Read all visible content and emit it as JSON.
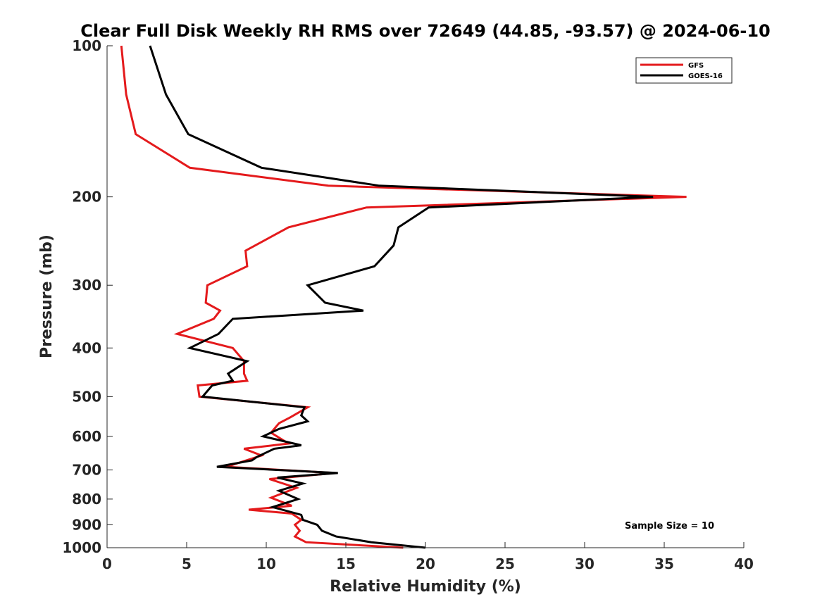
{
  "chart_data": {
    "type": "line",
    "title": "Clear Full Disk Weekly RH RMS over 72649 (44.85, -93.57) @ 2024-06-10",
    "xlabel": "Relative Humidity (%)",
    "ylabel": "Pressure (mb)",
    "xlim": [
      0,
      40
    ],
    "ylim": [
      100,
      1000
    ],
    "yscale": "log",
    "y_reversed": true,
    "x_ticks": [
      "0",
      "5",
      "10",
      "15",
      "20",
      "25",
      "30",
      "35",
      "40"
    ],
    "y_ticks": [
      "100",
      "200",
      "300",
      "400",
      "500",
      "600",
      "700",
      "800",
      "900",
      "1000"
    ],
    "legend_position": "top-right",
    "annotation": "Sample Size = 10",
    "series": [
      {
        "name": "GFS",
        "color": "#e41a1c",
        "points": [
          [
            0.9,
            100
          ],
          [
            1.2,
            125
          ],
          [
            1.8,
            150
          ],
          [
            5.2,
            175
          ],
          [
            13.9,
            190
          ],
          [
            36.4,
            200
          ],
          [
            16.3,
            210
          ],
          [
            11.4,
            230
          ],
          [
            8.7,
            256
          ],
          [
            8.8,
            275
          ],
          [
            6.3,
            300
          ],
          [
            6.2,
            325
          ],
          [
            7.1,
            337
          ],
          [
            6.7,
            350
          ],
          [
            4.4,
            375
          ],
          [
            7.9,
            400
          ],
          [
            8.6,
            425
          ],
          [
            8.6,
            450
          ],
          [
            8.8,
            465
          ],
          [
            5.7,
            475
          ],
          [
            5.8,
            500
          ],
          [
            12.6,
            525
          ],
          [
            11.5,
            550
          ],
          [
            10.8,
            565
          ],
          [
            10.3,
            590
          ],
          [
            11.4,
            620
          ],
          [
            8.6,
            635
          ],
          [
            9.7,
            655
          ],
          [
            7.5,
            690
          ],
          [
            14.3,
            710
          ],
          [
            10.2,
            730
          ],
          [
            11.9,
            760
          ],
          [
            10.3,
            795
          ],
          [
            11.6,
            825
          ],
          [
            8.9,
            840
          ],
          [
            11.6,
            855
          ],
          [
            12.2,
            880
          ],
          [
            11.8,
            900
          ],
          [
            12.1,
            925
          ],
          [
            11.8,
            950
          ],
          [
            12.5,
            975
          ],
          [
            18.6,
            1000
          ]
        ]
      },
      {
        "name": "GOES-16",
        "color": "#000000",
        "points": [
          [
            2.7,
            100
          ],
          [
            3.7,
            125
          ],
          [
            5.1,
            150
          ],
          [
            9.7,
            175
          ],
          [
            17.1,
            190
          ],
          [
            34.3,
            200
          ],
          [
            20.2,
            210
          ],
          [
            18.3,
            230
          ],
          [
            18.0,
            250
          ],
          [
            16.8,
            275
          ],
          [
            12.6,
            300
          ],
          [
            13.7,
            325
          ],
          [
            16.1,
            337
          ],
          [
            7.9,
            350
          ],
          [
            7.0,
            375
          ],
          [
            5.2,
            400
          ],
          [
            8.8,
            425
          ],
          [
            7.6,
            450
          ],
          [
            7.9,
            465
          ],
          [
            6.6,
            475
          ],
          [
            6.0,
            500
          ],
          [
            12.4,
            525
          ],
          [
            12.2,
            545
          ],
          [
            12.6,
            560
          ],
          [
            10.8,
            580
          ],
          [
            9.8,
            600
          ],
          [
            12.2,
            625
          ],
          [
            10.5,
            635
          ],
          [
            9.4,
            660
          ],
          [
            9.1,
            670
          ],
          [
            6.9,
            690
          ],
          [
            14.5,
            710
          ],
          [
            10.7,
            725
          ],
          [
            12.3,
            745
          ],
          [
            10.8,
            770
          ],
          [
            12.0,
            800
          ],
          [
            10.4,
            830
          ],
          [
            12.2,
            860
          ],
          [
            12.3,
            880
          ],
          [
            13.2,
            900
          ],
          [
            13.5,
            925
          ],
          [
            14.4,
            950
          ],
          [
            16.6,
            975
          ],
          [
            20.0,
            1000
          ]
        ]
      }
    ]
  }
}
